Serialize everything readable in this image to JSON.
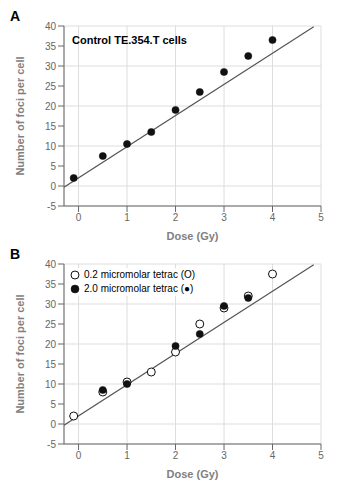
{
  "chart_data": [
    {
      "type": "scatter",
      "title": "Control TE.354.T cells",
      "annotations": [
        "A"
      ],
      "xlabel": "Dose (Gy)",
      "ylabel": "Number of foci per cell",
      "xlim": [
        -0.3,
        5.0
      ],
      "ylim": [
        -5,
        40
      ],
      "xticks": [
        0,
        1,
        2,
        3,
        4,
        5
      ],
      "yticks": [
        -5,
        0,
        5,
        10,
        15,
        20,
        25,
        30,
        35,
        40
      ],
      "grid": true,
      "series": [
        {
          "type": "line",
          "color": "#555555",
          "line_style": "solid",
          "x": [
            -0.3,
            4.85
          ],
          "values": [
            -0.3,
            39.8
          ]
        },
        {
          "type": "scatter",
          "color": "#111111",
          "marker": "circle",
          "x": [
            -0.1,
            0.5,
            1.0,
            1.5,
            2.0,
            2.5,
            3.0,
            3.5,
            4.0
          ],
          "values": [
            2.0,
            7.5,
            10.5,
            13.5,
            19.0,
            23.5,
            28.5,
            32.5,
            36.5
          ]
        }
      ]
    },
    {
      "type": "scatter",
      "annotations": [
        "B"
      ],
      "xlabel": "Dose (Gy)",
      "ylabel": "Number of foci per cell",
      "xlim": [
        -0.3,
        5.0
      ],
      "ylim": [
        -5,
        40
      ],
      "xticks": [
        0,
        1,
        2,
        3,
        4,
        5
      ],
      "yticks": [
        -5,
        0,
        5,
        10,
        15,
        20,
        25,
        30,
        35,
        40
      ],
      "grid": true,
      "legend": "upper left",
      "series": [
        {
          "type": "line",
          "color": "#555555",
          "line_style": "solid",
          "x": [
            -0.3,
            4.85
          ],
          "values": [
            -0.3,
            39.8
          ]
        },
        {
          "type": "scatter",
          "name": "0.2 micromolar tetrac (O)",
          "color": "#111111",
          "marker": "open_circle",
          "x": [
            -0.1,
            0.5,
            1.0,
            1.5,
            2.0,
            2.5,
            3.0,
            3.5,
            4.0
          ],
          "values": [
            2.0,
            8.0,
            10.5,
            13.0,
            18.0,
            25.0,
            29.0,
            32.0,
            37.5
          ]
        },
        {
          "type": "scatter",
          "name": "2.0 micromolar tetrac (●)",
          "color": "#111111",
          "marker": "circle",
          "x": [
            0.5,
            1.0,
            2.0,
            2.5,
            3.0,
            3.5
          ],
          "values": [
            8.5,
            10.0,
            19.5,
            22.5,
            29.5,
            31.5
          ]
        }
      ]
    }
  ]
}
